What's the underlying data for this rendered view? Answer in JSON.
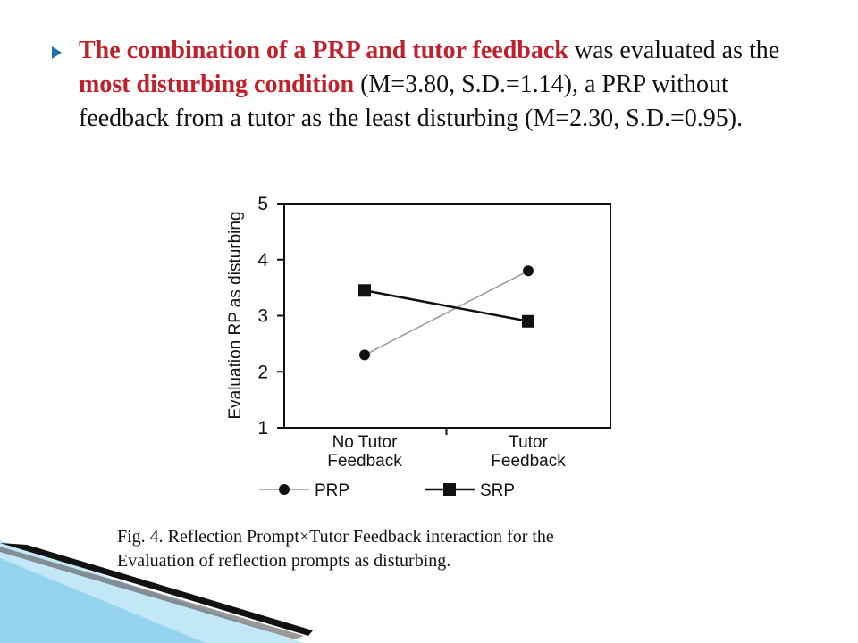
{
  "bullet": {
    "icon": "triangle-bullet-icon",
    "part1": "The combination of a PRP and tutor feedback",
    "part2": " was evaluated as the ",
    "part3": "most disturbing condition",
    "part4": " (M=3.80, S.D.=1.14), a PRP without feedback from a tutor as the least disturbing (M=2.30, S.D.=0.95).",
    "highlight_color": "#c0202a"
  },
  "chart_data": {
    "type": "line",
    "ylabel": "Evaluation RP as disturbing",
    "xlabel": "",
    "categories": [
      "No Tutor Feedback",
      "Tutor Feedback"
    ],
    "category_lines": [
      [
        "No Tutor",
        "Feedback"
      ],
      [
        "Tutor",
        "Feedback"
      ]
    ],
    "ylim": [
      1,
      5
    ],
    "yticks": [
      "1",
      "2",
      "3",
      "4",
      "5"
    ],
    "grid": false,
    "legend_position": "bottom",
    "series": [
      {
        "name": "PRP",
        "values": [
          2.3,
          3.8
        ],
        "marker": "circle",
        "color": "#999999"
      },
      {
        "name": "SRP",
        "values": [
          3.45,
          2.9
        ],
        "marker": "square",
        "color": "#111111"
      }
    ]
  },
  "caption": {
    "line1": "Fig. 4. Reflection Prompt×Tutor Feedback interaction for the",
    "line2": "Evaluation of reflection prompts as disturbing."
  }
}
